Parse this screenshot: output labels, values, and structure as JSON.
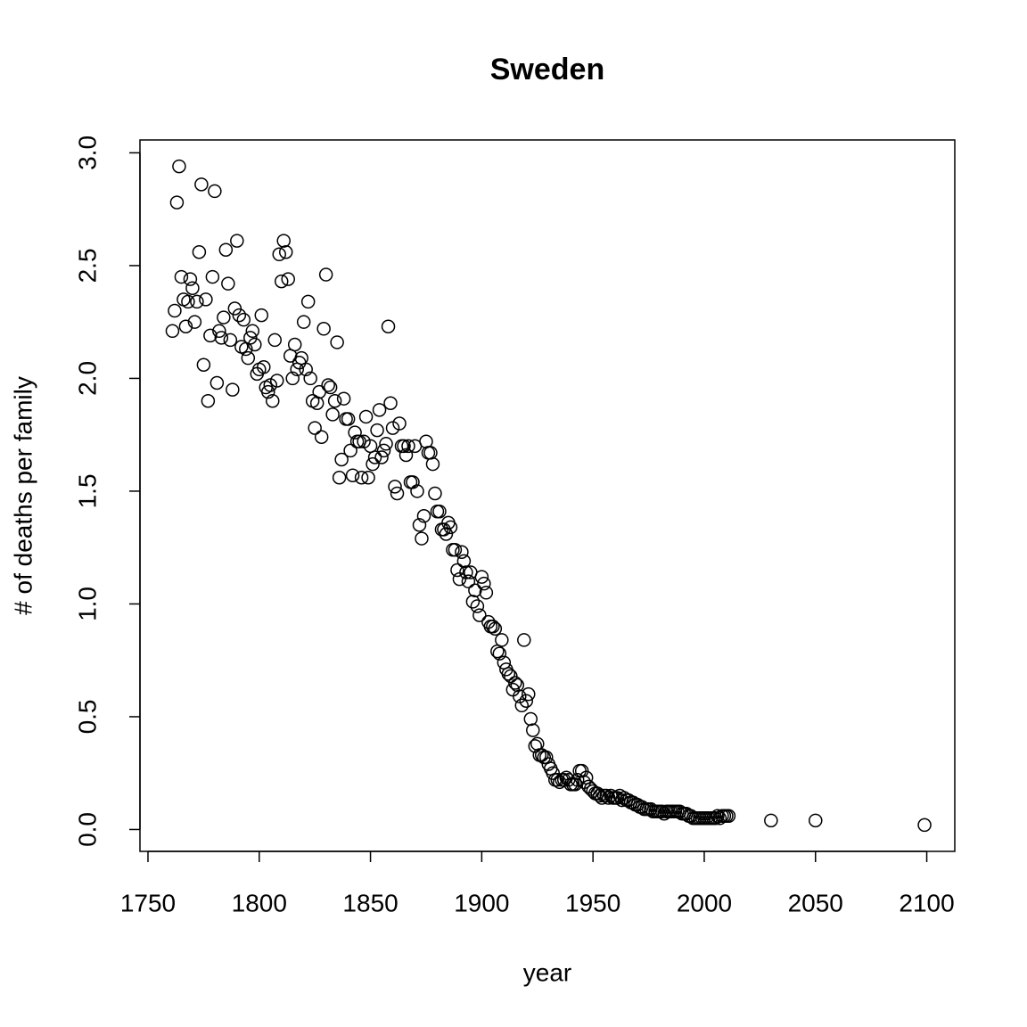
{
  "chart_data": {
    "type": "scatter",
    "title": "Sweden",
    "x_label": "year",
    "y_label": "# of deaths per family",
    "xlim": [
      1746.4,
      2112.6
    ],
    "ylim": [
      -0.097,
      3.057
    ],
    "xticks": [
      1750,
      1800,
      1850,
      1900,
      1950,
      2000,
      2050,
      2100
    ],
    "yticks": [
      {
        "value": 0,
        "label": "0.0"
      },
      0.5,
      {
        "value": 1,
        "label": "1.0"
      },
      1.5,
      {
        "value": 2,
        "label": "2.0"
      },
      2.5,
      {
        "value": 3,
        "label": "3.0"
      }
    ],
    "grid": false,
    "color": "#000000",
    "x": [
      1761,
      1762,
      1763,
      1764,
      1765,
      1766,
      1767,
      1768,
      1769,
      1770,
      1771,
      1772,
      1773,
      1774,
      1775,
      1776,
      1777,
      1778,
      1779,
      1780,
      1781,
      1782,
      1783,
      1784,
      1785,
      1786,
      1787,
      1788,
      1789,
      1790,
      1791,
      1792,
      1793,
      1794,
      1795,
      1796,
      1797,
      1798,
      1799,
      1800,
      1801,
      1802,
      1803,
      1804,
      1805,
      1806,
      1807,
      1808,
      1809,
      1810,
      1811,
      1812,
      1813,
      1814,
      1815,
      1816,
      1817,
      1818,
      1819,
      1820,
      1821,
      1822,
      1823,
      1824,
      1825,
      1826,
      1827,
      1828,
      1829,
      1830,
      1831,
      1832,
      1833,
      1834,
      1835,
      1836,
      1837,
      1838,
      1839,
      1840,
      1841,
      1842,
      1843,
      1844,
      1845,
      1846,
      1847,
      1848,
      1849,
      1850,
      1851,
      1852,
      1853,
      1854,
      1855,
      1856,
      1857,
      1858,
      1859,
      1860,
      1861,
      1862,
      1863,
      1864,
      1865,
      1866,
      1867,
      1868,
      1869,
      1870,
      1871,
      1872,
      1873,
      1874,
      1875,
      1876,
      1877,
      1878,
      1879,
      1880,
      1881,
      1882,
      1883,
      1884,
      1885,
      1886,
      1887,
      1888,
      1889,
      1890,
      1891,
      1892,
      1893,
      1894,
      1895,
      1896,
      1897,
      1898,
      1899,
      1900,
      1901,
      1902,
      1903,
      1904,
      1905,
      1906,
      1907,
      1908,
      1909,
      1910,
      1911,
      1912,
      1913,
      1914,
      1915,
      1916,
      1917,
      1918,
      1919,
      1920,
      1921,
      1922,
      1923,
      1924,
      1925,
      1926,
      1927,
      1928,
      1929,
      1930,
      1931,
      1932,
      1933,
      1934,
      1935,
      1936,
      1937,
      1938,
      1939,
      1940,
      1941,
      1942,
      1943,
      1944,
      1945,
      1946,
      1947,
      1948,
      1949,
      1950,
      1951,
      1952,
      1953,
      1954,
      1955,
      1956,
      1957,
      1958,
      1959,
      1960,
      1961,
      1962,
      1963,
      1964,
      1965,
      1966,
      1967,
      1968,
      1969,
      1970,
      1971,
      1972,
      1973,
      1974,
      1975,
      1976,
      1977,
      1978,
      1979,
      1980,
      1981,
      1982,
      1983,
      1984,
      1985,
      1986,
      1987,
      1988,
      1989,
      1990,
      1991,
      1992,
      1993,
      1994,
      1995,
      1996,
      1997,
      1998,
      1999,
      2000,
      2001,
      2002,
      2003,
      2004,
      2005,
      2006,
      2007,
      2008,
      2009,
      2010,
      2011,
      2030,
      2050,
      2099
    ],
    "values": [
      2.21,
      2.3,
      2.78,
      2.94,
      2.45,
      2.35,
      2.23,
      2.34,
      2.44,
      2.4,
      2.25,
      2.34,
      2.56,
      2.86,
      2.06,
      2.35,
      1.9,
      2.19,
      2.45,
      2.83,
      1.98,
      2.21,
      2.18,
      2.27,
      2.57,
      2.42,
      2.17,
      1.95,
      2.31,
      2.61,
      2.28,
      2.14,
      2.26,
      2.13,
      2.09,
      2.18,
      2.21,
      2.15,
      2.02,
      2.04,
      2.28,
      2.05,
      1.96,
      1.94,
      1.97,
      1.9,
      2.17,
      1.99,
      2.55,
      2.43,
      2.61,
      2.56,
      2.44,
      2.1,
      2.0,
      2.15,
      2.04,
      2.07,
      2.09,
      2.25,
      2.04,
      2.34,
      2.0,
      1.9,
      1.78,
      1.89,
      1.94,
      1.74,
      2.22,
      2.46,
      1.97,
      1.96,
      1.84,
      1.9,
      2.16,
      1.56,
      1.64,
      1.91,
      1.82,
      1.82,
      1.68,
      1.57,
      1.76,
      1.72,
      1.72,
      1.56,
      1.72,
      1.83,
      1.56,
      1.7,
      1.62,
      1.65,
      1.77,
      1.86,
      1.65,
      1.68,
      1.71,
      2.23,
      1.89,
      1.78,
      1.52,
      1.49,
      1.8,
      1.7,
      1.7,
      1.66,
      1.7,
      1.54,
      1.54,
      1.7,
      1.5,
      1.35,
      1.29,
      1.39,
      1.72,
      1.67,
      1.67,
      1.62,
      1.49,
      1.41,
      1.41,
      1.33,
      1.33,
      1.31,
      1.36,
      1.34,
      1.24,
      1.24,
      1.15,
      1.11,
      1.23,
      1.19,
      1.14,
      1.1,
      1.14,
      1.01,
      1.06,
      0.99,
      0.95,
      1.12,
      1.09,
      1.05,
      0.92,
      0.9,
      0.9,
      0.89,
      0.79,
      0.78,
      0.84,
      0.74,
      0.71,
      0.69,
      0.68,
      0.62,
      0.65,
      0.64,
      0.59,
      0.55,
      0.84,
      0.57,
      0.6,
      0.49,
      0.44,
      0.37,
      0.38,
      0.33,
      0.33,
      0.32,
      0.32,
      0.29,
      0.27,
      0.25,
      0.22,
      0.22,
      0.21,
      0.22,
      0.22,
      0.23,
      0.22,
      0.2,
      0.2,
      0.2,
      0.22,
      0.26,
      0.26,
      0.21,
      0.23,
      0.19,
      0.18,
      0.17,
      0.16,
      0.16,
      0.15,
      0.14,
      0.15,
      0.15,
      0.14,
      0.15,
      0.14,
      0.14,
      0.14,
      0.15,
      0.13,
      0.14,
      0.13,
      0.13,
      0.12,
      0.12,
      0.11,
      0.11,
      0.1,
      0.1,
      0.09,
      0.09,
      0.09,
      0.09,
      0.08,
      0.08,
      0.08,
      0.08,
      0.08,
      0.07,
      0.08,
      0.08,
      0.08,
      0.08,
      0.08,
      0.08,
      0.08,
      0.07,
      0.07,
      0.07,
      0.06,
      0.06,
      0.05,
      0.05,
      0.05,
      0.05,
      0.05,
      0.05,
      0.05,
      0.05,
      0.05,
      0.05,
      0.05,
      0.06,
      0.05,
      0.06,
      0.06,
      0.06,
      0.06,
      0.04,
      0.04,
      0.02
    ]
  }
}
